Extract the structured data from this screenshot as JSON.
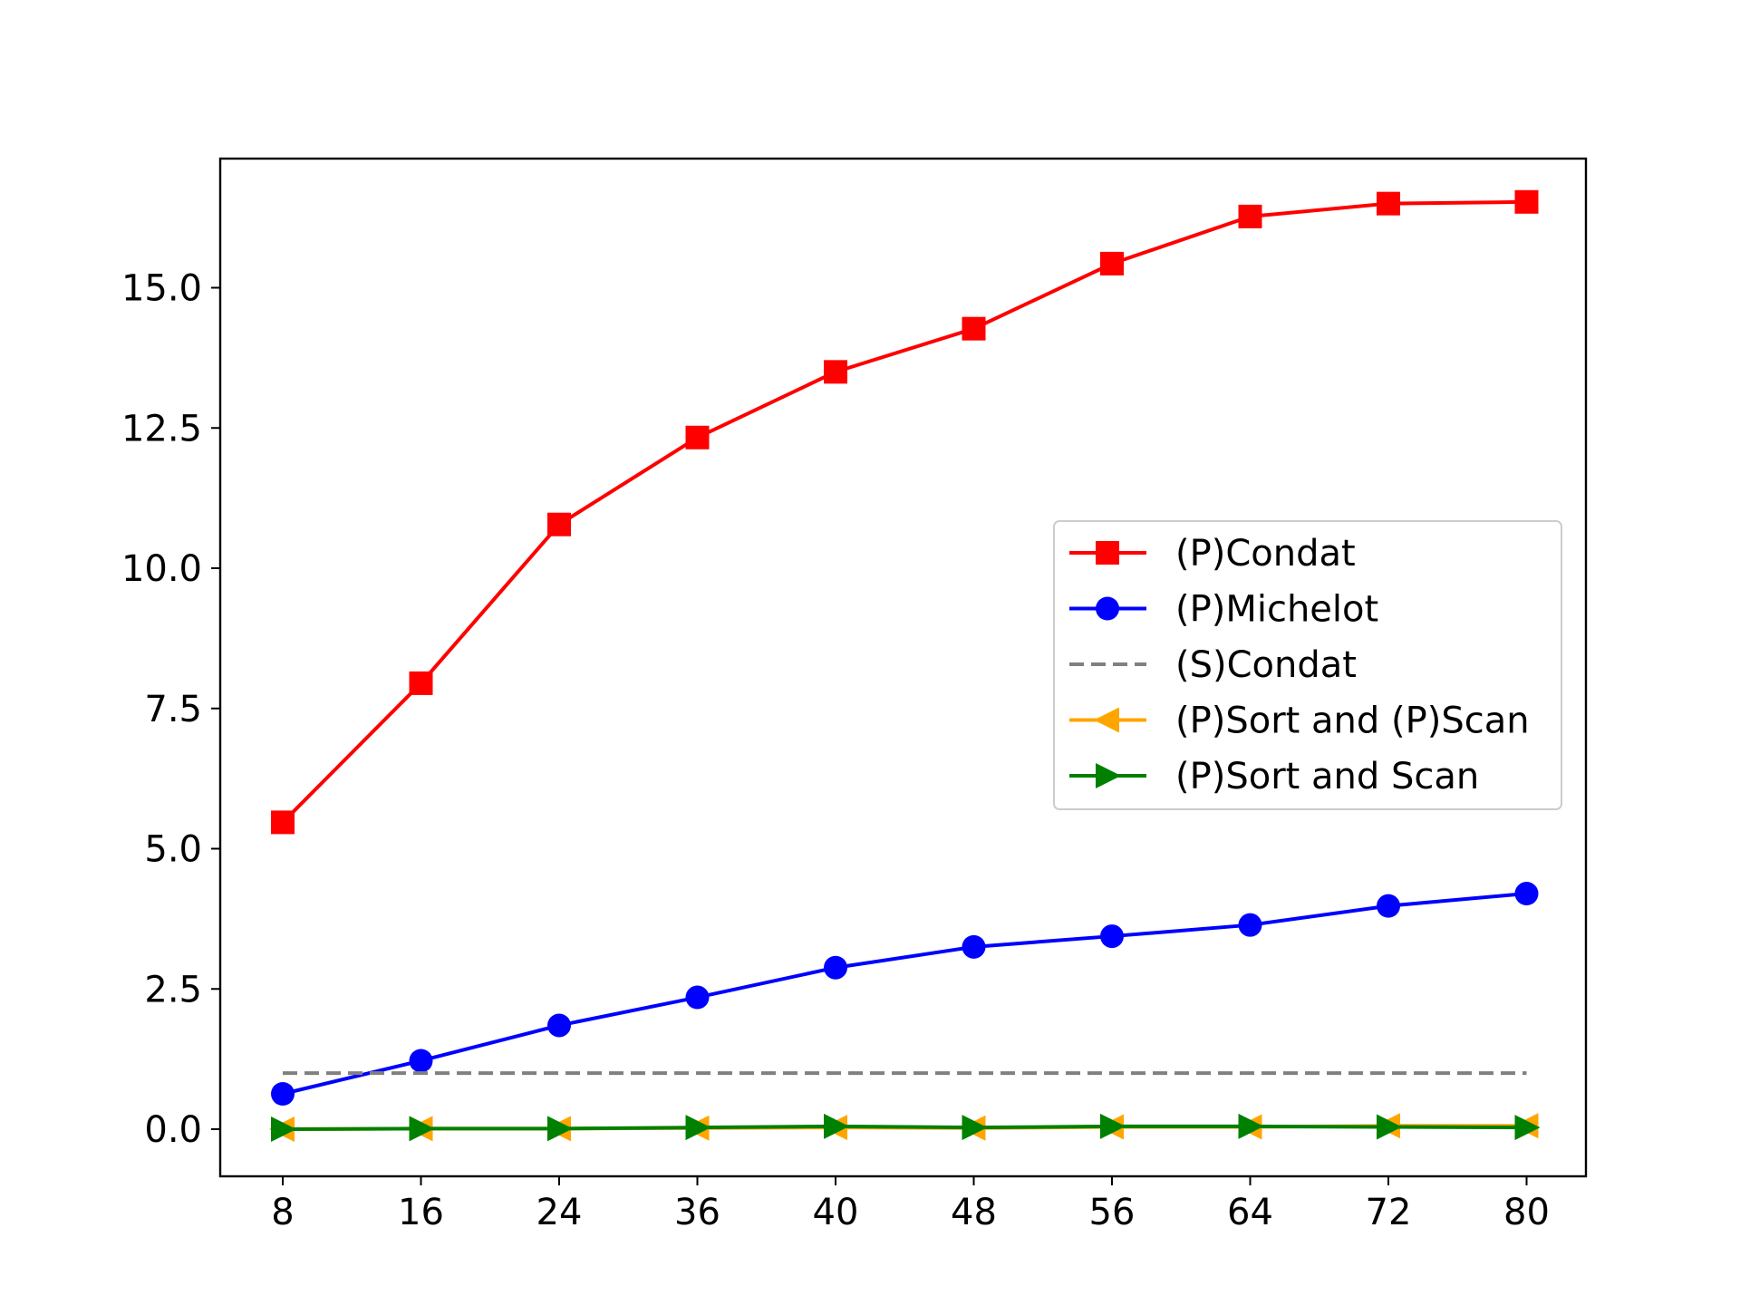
{
  "chart_data": {
    "type": "line",
    "title": "",
    "xlabel": "",
    "ylabel": "",
    "categories": [
      "8",
      "16",
      "24",
      "36",
      "40",
      "48",
      "56",
      "64",
      "72",
      "80"
    ],
    "x_scale": "categorical, evenly spaced",
    "ylim": [
      -0.85,
      17.2
    ],
    "yticks": [
      0.0,
      2.5,
      5.0,
      7.5,
      10.0,
      12.5,
      15.0
    ],
    "ytick_labels": [
      "0.0",
      "2.5",
      "5.0",
      "7.5",
      "10.0",
      "12.5",
      "15.0"
    ],
    "grid": false,
    "legend_position": "center-right",
    "series": [
      {
        "name": "(P)Condat",
        "color": "#ff0000",
        "marker": "square",
        "linestyle": "solid",
        "values": [
          5.47,
          7.95,
          10.78,
          12.33,
          13.5,
          14.27,
          15.43,
          16.27,
          16.5,
          16.53
        ]
      },
      {
        "name": "(P)Michelot",
        "color": "#0000ff",
        "marker": "circle",
        "linestyle": "solid",
        "values": [
          0.63,
          1.22,
          1.85,
          2.35,
          2.88,
          3.25,
          3.44,
          3.64,
          3.98,
          4.2
        ]
      },
      {
        "name": "(S)Condat",
        "color": "#808080",
        "marker": "none",
        "linestyle": "dashed",
        "values": [
          1.0,
          1.0,
          1.0,
          1.0,
          1.0,
          1.0,
          1.0,
          1.0,
          1.0,
          1.0
        ]
      },
      {
        "name": "(P)Sort and (P)Scan",
        "color": "#ffa500",
        "marker": "triangle-left",
        "linestyle": "solid",
        "values": [
          0.0,
          0.01,
          0.01,
          0.02,
          0.03,
          0.02,
          0.04,
          0.04,
          0.06,
          0.06
        ]
      },
      {
        "name": "(P)Sort and Scan",
        "color": "#008000",
        "marker": "triangle-right",
        "linestyle": "solid",
        "values": [
          0.0,
          0.01,
          0.01,
          0.03,
          0.05,
          0.03,
          0.05,
          0.05,
          0.04,
          0.03
        ]
      }
    ]
  }
}
